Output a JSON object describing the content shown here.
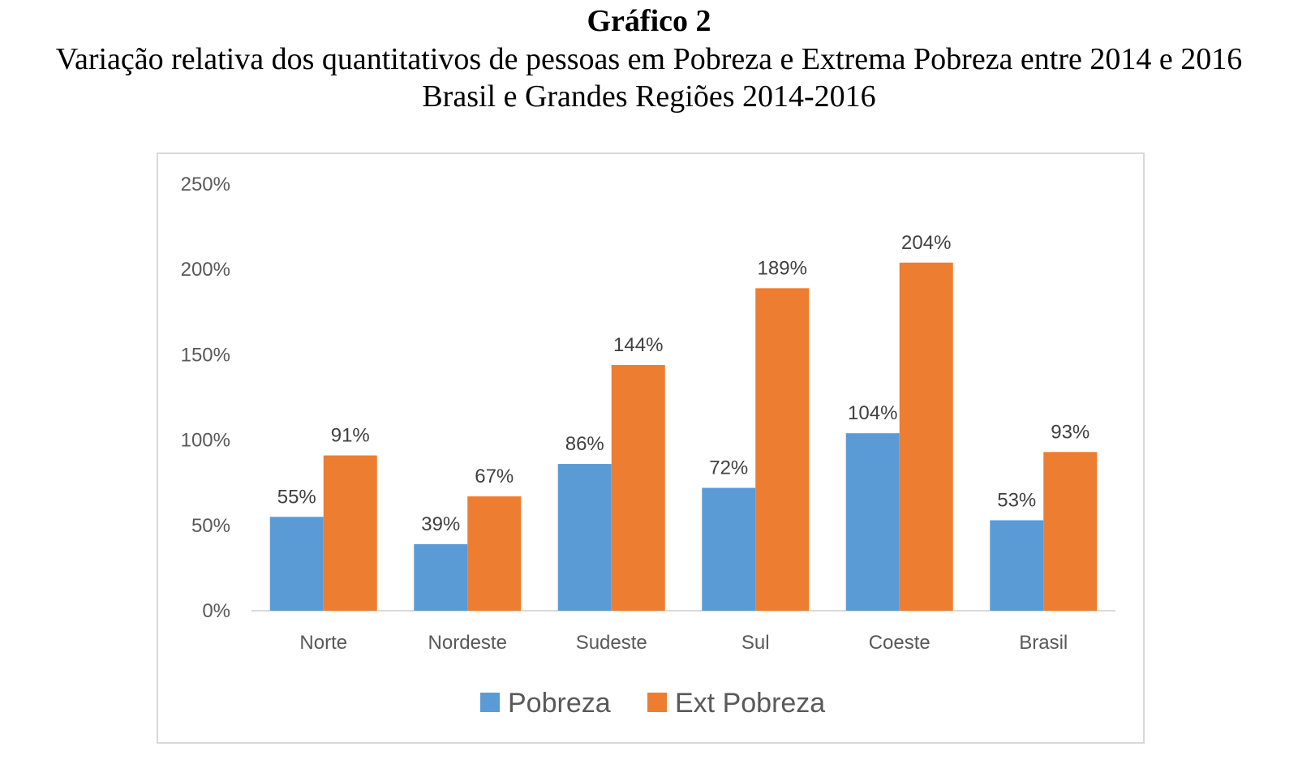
{
  "header": {
    "title": "Gráfico 2",
    "subtitle": "Variação relativa dos quantitativos de pessoas em Pobreza e Extrema Pobreza entre 2014 e 2016",
    "subtitle2": "Brasil e Grandes Regiões 2014-2016"
  },
  "colors": {
    "pobreza": "#5b9bd5",
    "ext_pobreza": "#ed7d31"
  },
  "chart_data": {
    "type": "bar",
    "categories": [
      "Norte",
      "Nordeste",
      "Sudeste",
      "Sul",
      "Coeste",
      "Brasil"
    ],
    "series": [
      {
        "name": "Pobreza",
        "values": [
          55,
          39,
          86,
          72,
          104,
          53
        ],
        "labels": [
          "55%",
          "39%",
          "86%",
          "72%",
          "104%",
          "53%"
        ]
      },
      {
        "name": "Ext Pobreza",
        "values": [
          91,
          67,
          144,
          189,
          204,
          93
        ],
        "labels": [
          "91%",
          "67%",
          "144%",
          "189%",
          "204%",
          "93%"
        ]
      }
    ],
    "ylim": [
      0,
      250
    ],
    "yticks": [
      0,
      50,
      100,
      150,
      200,
      250
    ],
    "ytick_labels": [
      "0%",
      "50%",
      "100%",
      "150%",
      "200%",
      "250%"
    ],
    "grid": false,
    "legend": "bottom"
  }
}
